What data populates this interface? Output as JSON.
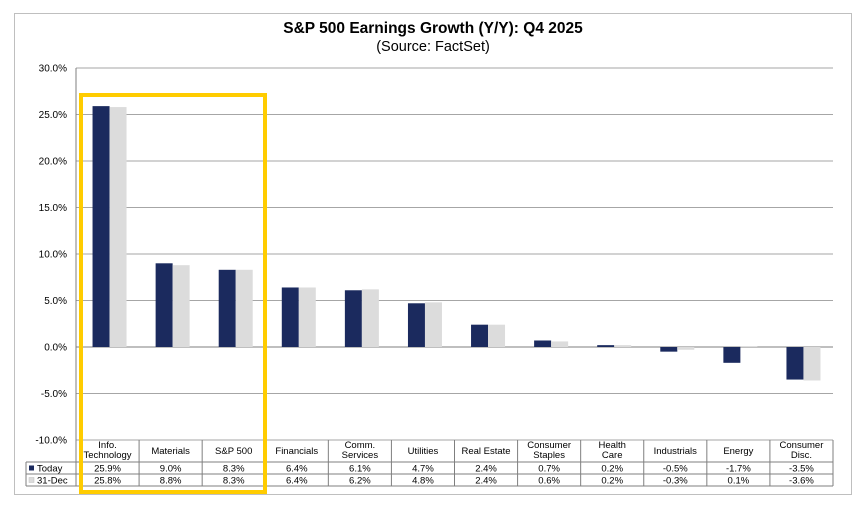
{
  "chart_data": {
    "type": "bar",
    "title": "S&P 500 Earnings Growth (Y/Y): Q4 2025",
    "subtitle": "(Source: FactSet)",
    "ylim": [
      -10,
      30
    ],
    "yticks": [
      "30.0%",
      "25.0%",
      "20.0%",
      "15.0%",
      "10.0%",
      "5.0%",
      "0.0%",
      "-5.0%",
      "-10.0%"
    ],
    "ytick_values": [
      30,
      25,
      20,
      15,
      10,
      5,
      0,
      -5,
      -10
    ],
    "grid": true,
    "categories": [
      [
        "Info.",
        "Technology"
      ],
      [
        "Materials"
      ],
      [
        "S&P 500"
      ],
      [
        "Financials"
      ],
      [
        "Comm.",
        "Services"
      ],
      [
        "Utilities"
      ],
      [
        "Real Estate"
      ],
      [
        "Consumer",
        "Staples"
      ],
      [
        "Health",
        "Care"
      ],
      [
        "Industrials"
      ],
      [
        "Energy"
      ],
      [
        "Consumer",
        "Disc."
      ]
    ],
    "series": [
      {
        "name": "Today",
        "color": "#1B2A5E",
        "values": [
          25.9,
          9.0,
          8.3,
          6.4,
          6.1,
          4.7,
          2.4,
          0.7,
          0.2,
          -0.5,
          -1.7,
          -3.5
        ],
        "labels": [
          "25.9%",
          "9.0%",
          "8.3%",
          "6.4%",
          "6.1%",
          "4.7%",
          "2.4%",
          "0.7%",
          "0.2%",
          "-0.5%",
          "-1.7%",
          "-3.5%"
        ]
      },
      {
        "name": "31-Dec",
        "color": "#DCDCDC",
        "values": [
          25.8,
          8.8,
          8.3,
          6.4,
          6.2,
          4.8,
          2.4,
          0.6,
          0.2,
          -0.3,
          0.1,
          -3.6
        ],
        "labels": [
          "25.8%",
          "8.8%",
          "8.3%",
          "6.4%",
          "6.2%",
          "4.8%",
          "2.4%",
          "0.6%",
          "0.2%",
          "-0.3%",
          "0.1%",
          "-3.6%"
        ]
      }
    ],
    "highlight": {
      "categories": [
        "Info. Technology",
        "Materials",
        "S&P 500"
      ],
      "color": "#FFCC00"
    }
  }
}
